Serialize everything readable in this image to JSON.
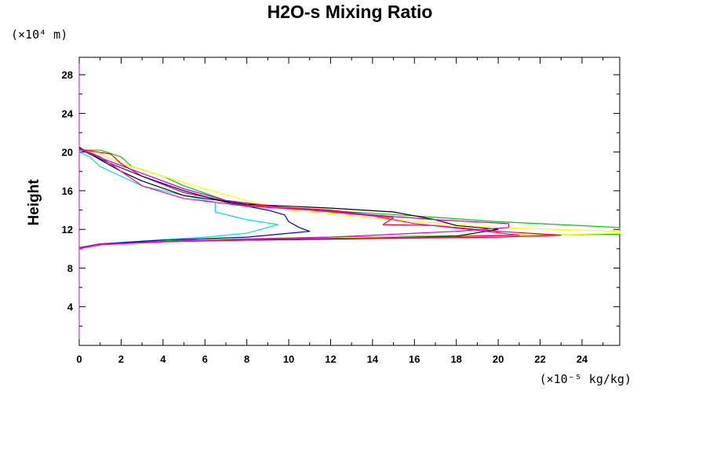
{
  "chart_data": {
    "type": "line",
    "title": "H2O-s Mixing Ratio",
    "ylabel": "Height",
    "xlabel": "",
    "x_unit": "(×10⁻⁵ kg/kg)",
    "y_unit": "(×10⁴ m)",
    "xlim": [
      0,
      25.8
    ],
    "ylim": [
      0,
      29.8
    ],
    "x_ticks": [
      0,
      2,
      4,
      6,
      8,
      10,
      12,
      14,
      16,
      18,
      20,
      22,
      24
    ],
    "y_ticks": [
      4,
      8,
      12,
      16,
      20,
      24,
      28
    ],
    "grid": false,
    "legend": "none",
    "series": [
      {
        "color": "#00cc00",
        "points": [
          [
            0,
            10.1
          ],
          [
            1,
            10.5
          ],
          [
            5,
            10.9
          ],
          [
            12,
            11.2
          ],
          [
            20,
            11.4
          ],
          [
            25.8,
            11.5
          ],
          [
            25.8,
            12.2
          ],
          [
            20,
            12.8
          ],
          [
            16,
            13.4
          ],
          [
            10,
            14.2
          ],
          [
            7,
            15.0
          ],
          [
            5,
            16.5
          ],
          [
            4,
            17.5
          ],
          [
            2.5,
            18.5
          ],
          [
            2,
            19.5
          ],
          [
            1,
            20.2
          ],
          [
            0,
            20.2
          ]
        ]
      },
      {
        "color": "#ffff00",
        "points": [
          [
            0,
            10.1
          ],
          [
            1,
            10.5
          ],
          [
            6,
            10.9
          ],
          [
            14,
            11.2
          ],
          [
            22,
            11.4
          ],
          [
            25.8,
            11.6
          ],
          [
            25.8,
            11.8
          ],
          [
            20,
            12.2
          ],
          [
            15,
            13.0
          ],
          [
            10,
            14.0
          ],
          [
            8,
            15.0
          ],
          [
            6,
            16.2
          ],
          [
            4,
            17.5
          ],
          [
            2,
            18.8
          ],
          [
            1,
            19.8
          ],
          [
            0,
            20.3
          ]
        ]
      },
      {
        "color": "#ff0000",
        "points": [
          [
            0,
            10.1
          ],
          [
            1,
            10.5
          ],
          [
            5,
            10.8
          ],
          [
            12,
            11.0
          ],
          [
            20,
            11.2
          ],
          [
            23,
            11.4
          ],
          [
            20,
            11.8
          ],
          [
            17,
            12.4
          ],
          [
            14.5,
            12.5
          ],
          [
            15,
            13.2
          ],
          [
            12,
            14.0
          ],
          [
            8,
            14.5
          ],
          [
            5,
            15.8
          ],
          [
            3,
            17.5
          ],
          [
            2,
            18.8
          ],
          [
            1.5,
            19.8
          ],
          [
            0,
            20.3
          ]
        ]
      },
      {
        "color": "#00dddd",
        "points": [
          [
            0,
            10.1
          ],
          [
            1,
            10.5
          ],
          [
            3,
            10.8
          ],
          [
            6,
            11.2
          ],
          [
            8,
            11.6
          ],
          [
            9.5,
            12.5
          ],
          [
            8,
            13.0
          ],
          [
            6.5,
            13.8
          ],
          [
            6.5,
            14.8
          ],
          [
            5,
            15.5
          ],
          [
            3,
            16.5
          ],
          [
            2,
            17.5
          ],
          [
            1,
            18.5
          ],
          [
            0.5,
            19.5
          ],
          [
            0,
            20.0
          ]
        ]
      },
      {
        "color": "#0000cc",
        "points": [
          [
            0,
            10.1
          ],
          [
            1,
            10.5
          ],
          [
            4,
            10.9
          ],
          [
            8,
            11.2
          ],
          [
            11,
            11.8
          ],
          [
            10.5,
            12.2
          ],
          [
            10,
            12.8
          ],
          [
            9.8,
            13.5
          ],
          [
            9,
            14.0
          ],
          [
            7,
            14.8
          ],
          [
            5,
            16.0
          ],
          [
            3,
            17.5
          ],
          [
            1.5,
            18.8
          ],
          [
            0.5,
            19.8
          ],
          [
            0,
            20.3
          ]
        ]
      },
      {
        "color": "#000000",
        "points": [
          [
            0,
            10.1
          ],
          [
            1,
            10.5
          ],
          [
            5,
            10.8
          ],
          [
            12,
            11.0
          ],
          [
            18,
            11.3
          ],
          [
            20,
            12.0
          ],
          [
            18,
            12.4
          ],
          [
            17,
            13.0
          ],
          [
            15,
            13.8
          ],
          [
            12,
            14.2
          ],
          [
            8,
            14.6
          ],
          [
            5,
            15.5
          ],
          [
            3,
            17.0
          ],
          [
            2,
            18.0
          ],
          [
            1,
            19.2
          ],
          [
            0,
            20.5
          ]
        ]
      },
      {
        "color": "#cc00cc",
        "points": [
          [
            0,
            10.1
          ],
          [
            1,
            10.5
          ],
          [
            5,
            10.8
          ],
          [
            12,
            11.2
          ],
          [
            18,
            11.8
          ],
          [
            20.5,
            12.2
          ],
          [
            20.5,
            12.6
          ],
          [
            17,
            13.0
          ],
          [
            14,
            13.5
          ],
          [
            10,
            14.2
          ],
          [
            7,
            15.0
          ],
          [
            5,
            16.2
          ],
          [
            3,
            17.8
          ],
          [
            1.5,
            19.0
          ],
          [
            0,
            20.3
          ]
        ]
      },
      {
        "color": "#ff00aa",
        "points": [
          [
            0,
            10.0
          ],
          [
            1,
            10.4
          ],
          [
            4,
            10.7
          ],
          [
            10,
            11.0
          ],
          [
            17,
            11.2
          ],
          [
            21,
            11.4
          ],
          [
            19,
            11.9
          ],
          [
            16,
            12.6
          ],
          [
            14,
            13.4
          ],
          [
            11,
            14.0
          ],
          [
            8,
            14.4
          ],
          [
            5,
            15.2
          ],
          [
            3,
            16.5
          ],
          [
            2,
            18.0
          ],
          [
            1,
            19.5
          ],
          [
            0,
            20.4
          ]
        ]
      }
    ]
  }
}
